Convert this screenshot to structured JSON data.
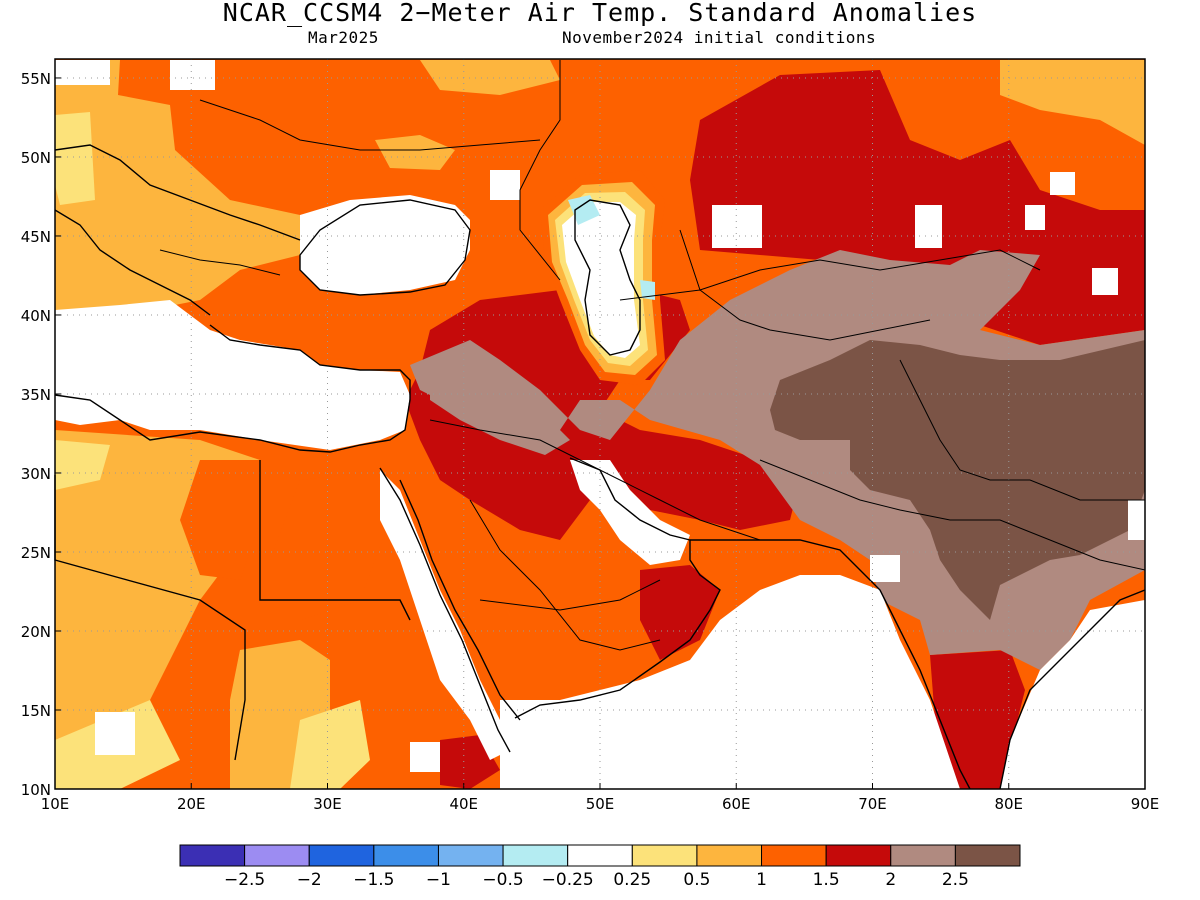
{
  "title": "NCAR_CCSM4 2−Meter Air Temp. Standard Anomalies",
  "valid_month": "Mar2025",
  "init_conditions": "November2024 initial conditions",
  "map": {
    "lon_ticks": [
      "10E",
      "20E",
      "30E",
      "40E",
      "50E",
      "60E",
      "70E",
      "80E",
      "90E"
    ],
    "lat_ticks": [
      "10N",
      "15N",
      "20N",
      "25N",
      "30N",
      "35N",
      "40N",
      "45N",
      "50N",
      "55N"
    ]
  },
  "colorbar": {
    "colors": [
      "#3b2fb4",
      "#9c8cf2",
      "#1f64df",
      "#3c8ee9",
      "#74b2f0",
      "#b4ecf2",
      "#ffffff",
      "#fce27a",
      "#fdb53e",
      "#fd6100",
      "#c50a0a",
      "#b08a80",
      "#7b5446"
    ],
    "labels": [
      "−2.5",
      "−2",
      "−1.5",
      "−1",
      "−0.5",
      "−0.25",
      "0.25",
      "0.5",
      "1",
      "1.5",
      "2",
      "2.5"
    ]
  }
}
